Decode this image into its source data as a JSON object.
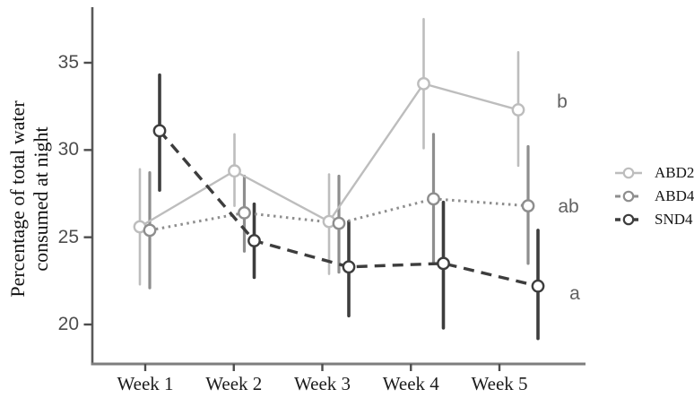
{
  "figure": {
    "background": "#ffffff",
    "y_axis_title_lines": [
      "Percentage of total water",
      "consumed at night"
    ]
  },
  "chart_data": {
    "type": "line",
    "title": "",
    "xlabel": "",
    "ylabel": "Percentage of total water consumed at night",
    "categories": [
      "Week 1",
      "Week 2",
      "Week 3",
      "Week 4",
      "Week 5"
    ],
    "yticks": [
      20,
      25,
      30,
      35
    ],
    "ylim": [
      17.8,
      38.2
    ],
    "grid": false,
    "legend_position": "right-outside",
    "marker": "open-circle",
    "error_bars": true,
    "series": [
      {
        "name": "ABD2",
        "color": "#bdbdbd",
        "line_style": "solid",
        "values": [
          25.6,
          28.8,
          25.9,
          33.8,
          32.3
        ],
        "err_low": [
          22.3,
          26.8,
          22.9,
          30.1,
          29.1
        ],
        "err_high": [
          28.9,
          30.9,
          28.6,
          37.5,
          35.6
        ],
        "sig_label": "b"
      },
      {
        "name": "ABD4",
        "color": "#8e8e8e",
        "line_style": "dotted",
        "values": [
          25.4,
          26.4,
          25.8,
          27.2,
          26.8
        ],
        "err_low": [
          22.1,
          24.2,
          23.0,
          23.5,
          23.5
        ],
        "err_high": [
          28.7,
          28.5,
          28.5,
          30.9,
          30.2
        ],
        "sig_label": "ab"
      },
      {
        "name": "SND4",
        "color": "#3d3d3d",
        "line_style": "dashed",
        "values": [
          31.1,
          24.8,
          23.3,
          23.5,
          22.2
        ],
        "err_low": [
          27.7,
          22.7,
          20.5,
          19.8,
          19.2
        ],
        "err_high": [
          34.3,
          26.9,
          25.9,
          27.0,
          25.4
        ],
        "sig_label": "a"
      }
    ],
    "annotation_color": "#616161"
  }
}
